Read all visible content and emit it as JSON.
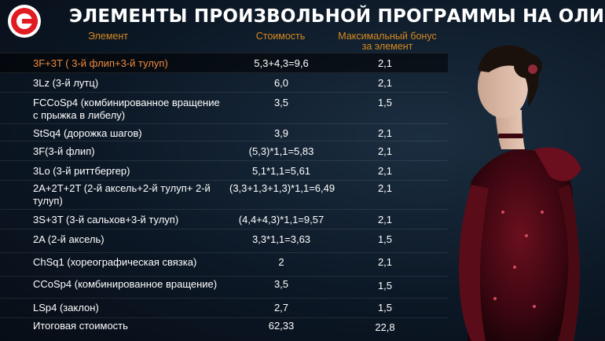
{
  "title": "ЭЛЕМЕНТЫ ПРОИЗВОЛЬНОЙ ПРОГРАММЫ НА ОЛИМПИАДЕ",
  "headers": {
    "element": "Элемент",
    "cost": "Стоимость",
    "bonus_line1": "Максимальный бонус",
    "bonus_line2": "за элемент"
  },
  "rows": [
    {
      "name": "3F+3T ( 3-й флип+3-й тулуп)",
      "cost": "5,3+4,3=9,6",
      "bonus": "2,1"
    },
    {
      "name": "3Lz (3-й лутц)",
      "cost": "6,0",
      "bonus": "2,1"
    },
    {
      "name": "FCCoSp4 (комбинированное вращение с прыжка в либелу)",
      "cost": "3,5",
      "bonus": "1,5"
    },
    {
      "name": "StSq4 (дорожка шагов)",
      "cost": "3,9",
      "bonus": "2,1"
    },
    {
      "name": "3F(3-й флип)",
      "cost": "(5,3)*1,1=5,83",
      "bonus": "2,1"
    },
    {
      "name": "3Lo (3-й риттбергер)",
      "cost": "5,1*1,1=5,61",
      "bonus": "2,1"
    },
    {
      "name": "2A+2T+2T (2-й аксель+2-й тулуп+ 2-й тулуп)",
      "cost": "(3,3+1,3+1,3)*1,1=6,49",
      "bonus": "2,1"
    },
    {
      "name": "3S+3T (3-й сальхов+3-й тулуп)",
      "cost": "(4,4+4,3)*1,1=9,57",
      "bonus": "2,1"
    },
    {
      "name": "2A (2-й аксель)",
      "cost": "3,3*1,1=3,63",
      "bonus": "1,5"
    },
    {
      "name": "ChSq1 (хореографическая связка)",
      "cost": "2",
      "bonus": "2,1"
    },
    {
      "name": "CCoSp4 (комбинированное вращение)",
      "cost": "3,5",
      "bonus": "1,5"
    },
    {
      "name": "LSp4 (заклон)",
      "cost": "2,7",
      "bonus": "1,5"
    },
    {
      "name": "Итоговая стоимость",
      "cost": "62,33",
      "bonus": "22,8"
    }
  ]
}
